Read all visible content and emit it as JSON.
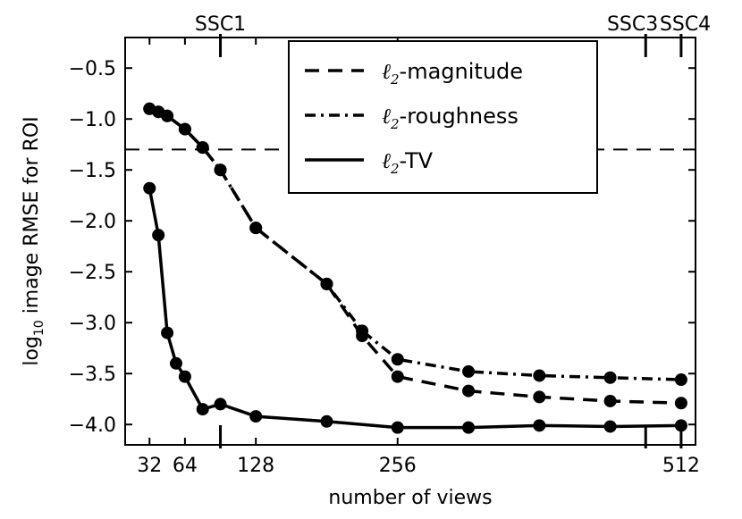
{
  "chart_data": {
    "type": "line",
    "title": "",
    "xlabel": "number of views",
    "ylabel_main": "log",
    "ylabel_sub": "10",
    "ylabel_rest": " image RMSE for ROI",
    "xlim": [
      10,
      525
    ],
    "ylim": [
      -4.2,
      -0.2
    ],
    "x_ticks": [
      32,
      64,
      128,
      256,
      512
    ],
    "x_tick_labels": [
      "32",
      "64",
      "128",
      "256",
      "512"
    ],
    "y_ticks": [
      -4.0,
      -3.5,
      -3.0,
      -2.5,
      -2.0,
      -1.5,
      -1.0,
      -0.5
    ],
    "y_tick_labels": [
      "−4.0",
      "−3.5",
      "−3.0",
      "−2.5",
      "−2.0",
      "−1.5",
      "−1.0",
      "−0.5"
    ],
    "top_ticks": [
      {
        "label": "SSC1",
        "x": 96
      },
      {
        "label": "SSC3",
        "x": 480
      },
      {
        "label": "SSC4",
        "x": 512
      }
    ],
    "reference_line": {
      "y": -1.3,
      "style": "dashed"
    },
    "legend": {
      "placement": "top-right",
      "entries": [
        {
          "math": "ℓ",
          "sub": "2",
          "text": "-magnitude",
          "style": "dashed"
        },
        {
          "math": "ℓ",
          "sub": "2",
          "text": "-roughness",
          "style": "dashdot"
        },
        {
          "math": "ℓ",
          "sub": "2",
          "text": "-TV",
          "style": "solid"
        }
      ]
    },
    "series": [
      {
        "style": "dashed",
        "x": [
          32,
          40,
          48,
          64,
          80,
          96,
          128,
          192,
          224,
          256,
          320,
          384,
          448,
          512
        ],
        "y": [
          -0.9,
          -0.93,
          -0.97,
          -1.1,
          -1.28,
          -1.5,
          -2.07,
          -2.62,
          -3.13,
          -3.53,
          -3.67,
          -3.73,
          -3.77,
          -3.79
        ]
      },
      {
        "style": "dashdot",
        "x": [
          32,
          40,
          48,
          64,
          80,
          96,
          128,
          192,
          224,
          256,
          320,
          384,
          448,
          512
        ],
        "y": [
          -0.9,
          -0.93,
          -0.97,
          -1.1,
          -1.28,
          -1.5,
          -2.07,
          -2.62,
          -3.08,
          -3.36,
          -3.48,
          -3.52,
          -3.54,
          -3.56
        ]
      },
      {
        "style": "solid",
        "x": [
          32,
          40,
          48,
          56,
          64,
          80,
          96,
          128,
          192,
          256,
          320,
          384,
          448,
          512
        ],
        "y": [
          -1.68,
          -2.14,
          -3.1,
          -3.4,
          -3.53,
          -3.85,
          -3.8,
          -3.92,
          -3.97,
          -4.03,
          -4.03,
          -4.01,
          -4.02,
          -4.01
        ]
      }
    ]
  }
}
